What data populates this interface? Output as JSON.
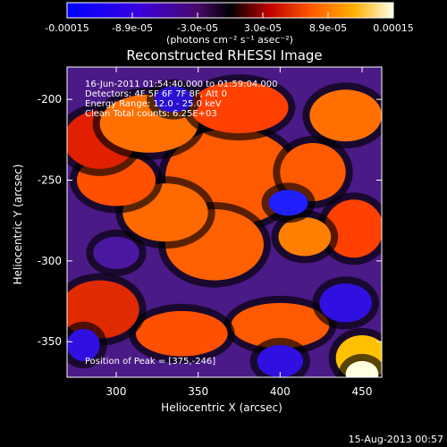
{
  "chart_data": {
    "type": "heatmap",
    "title": "Reconstructed RHESSI Image",
    "xlabel": "Heliocentric X (arcsec)",
    "ylabel": "Heliocentric Y (arcsec)",
    "xlim": [
      270,
      462
    ],
    "ylim": [
      -372,
      -180
    ],
    "x_ticks": [
      300,
      350,
      400,
      450
    ],
    "y_ticks": [
      -200,
      -250,
      -300,
      -350
    ],
    "colorbar": {
      "range": [
        -0.00015,
        0.00015
      ],
      "tick_labels": [
        "-0.00015",
        "-8.9e-05",
        "-3.0e-05",
        "3.0e-05",
        "8.9e-05",
        "0.00015"
      ],
      "unit_label": "(photons cm⁻² s⁻¹ asec⁻²)"
    },
    "info_lines": [
      "16-Jun-2011 01:54:40.000 to 01:59:04.000",
      "Detectors: 4F 5F 6F 7F 8F, Att 0",
      "Energy Range: 12.0 - 25.0 keV",
      "Clean    Total counts: 6.25E+03"
    ],
    "peak_label": "Position of Peak = [375,-246]",
    "peak_position": [
      375,
      -246
    ],
    "grid": false
  },
  "footer": {
    "date": "15-Aug-2013 00:57"
  }
}
